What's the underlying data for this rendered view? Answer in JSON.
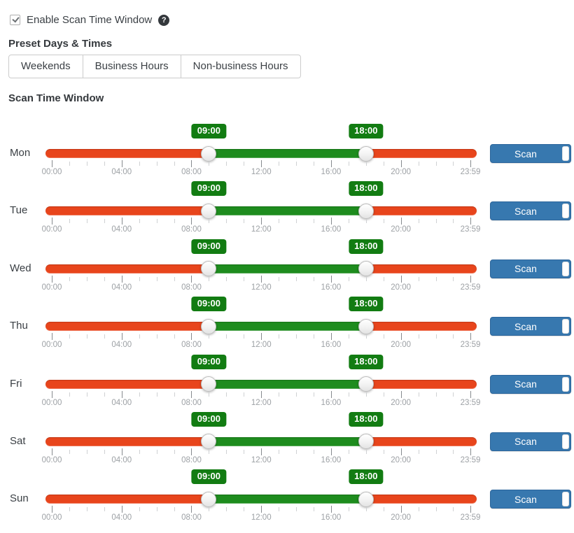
{
  "enable": {
    "label": "Enable Scan Time Window",
    "checked": true,
    "help_icon": "question-circle-icon"
  },
  "presets": {
    "heading": "Preset Days & Times",
    "buttons": [
      "Weekends",
      "Business Hours",
      "Non-business Hours"
    ]
  },
  "scan_window": {
    "heading": "Scan Time Window",
    "axis": {
      "end_hour": 23.9833,
      "major_hours": [
        0,
        4,
        8,
        12,
        16,
        20,
        23.9833
      ],
      "major_labels": [
        "00:00",
        "04:00",
        "08:00",
        "12:00",
        "16:00",
        "20:00",
        "23:59"
      ],
      "minor_ticks": "hourly"
    },
    "days": [
      {
        "label": "Mon",
        "from": "09:00",
        "to": "18:00",
        "from_hour": 9,
        "to_hour": 18,
        "action": "Scan"
      },
      {
        "label": "Tue",
        "from": "09:00",
        "to": "18:00",
        "from_hour": 9,
        "to_hour": 18,
        "action": "Scan"
      },
      {
        "label": "Wed",
        "from": "09:00",
        "to": "18:00",
        "from_hour": 9,
        "to_hour": 18,
        "action": "Scan"
      },
      {
        "label": "Thu",
        "from": "09:00",
        "to": "18:00",
        "from_hour": 9,
        "to_hour": 18,
        "action": "Scan"
      },
      {
        "label": "Fri",
        "from": "09:00",
        "to": "18:00",
        "from_hour": 9,
        "to_hour": 18,
        "action": "Scan"
      },
      {
        "label": "Sat",
        "from": "09:00",
        "to": "18:00",
        "from_hour": 9,
        "to_hour": 18,
        "action": "Scan"
      },
      {
        "label": "Sun",
        "from": "09:00",
        "to": "18:00",
        "from_hour": 9,
        "to_hour": 18,
        "action": "Scan"
      }
    ]
  },
  "colors": {
    "excluded_red": "#e8451c",
    "included_green": "#1e8c1e",
    "badge_green": "#127c12",
    "toggle_blue": "#3778af",
    "toggle_blue_border": "#2b659b"
  }
}
